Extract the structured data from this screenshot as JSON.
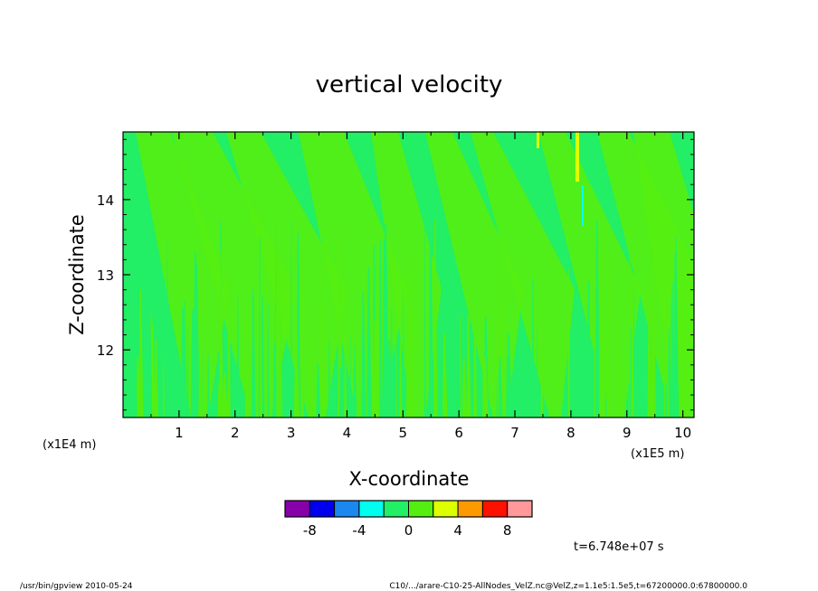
{
  "chart_data": {
    "type": "heatmap",
    "title": "vertical velocity",
    "xlabel": "X-coordinate",
    "ylabel": "Z-coordinate",
    "x_unit_left": "(x1E4 m)",
    "x_unit_right": "(x1E5 m)",
    "xlim": [
      0,
      10.2
    ],
    "ylim": [
      11.1,
      14.9
    ],
    "x_ticks": [
      1,
      2,
      3,
      4,
      5,
      6,
      7,
      8,
      9,
      10
    ],
    "x_tick_labels": [
      "1",
      "2",
      "3",
      "4",
      "5",
      "6",
      "7",
      "8",
      "9",
      "10"
    ],
    "y_ticks": [
      12,
      13,
      14
    ],
    "y_tick_labels": [
      "12",
      "13",
      "14"
    ],
    "colorbar": {
      "levels": [
        -10,
        -8,
        -6,
        -4,
        -2,
        0,
        2,
        4,
        6,
        8,
        10
      ],
      "colors": [
        "#8800aa",
        "#0000ee",
        "#1a88ee",
        "#00ffee",
        "#22ee66",
        "#55ee11",
        "#ddff00",
        "#ff9900",
        "#ff1100",
        "#ff9999"
      ],
      "tick_values": [
        -8,
        -4,
        0,
        4,
        8
      ],
      "tick_labels": [
        "-8",
        "-4",
        "0",
        "4",
        "8"
      ]
    },
    "field_colors": {
      "background": "#22ee66",
      "streaks": "#55ee11",
      "hot": "#ddff00"
    },
    "time_label": "t=6.748e+07 s",
    "footer_left": "/usr/bin/gpview   2010-05-24",
    "footer_right": "C10/.../arare-C10-25-AllNodes_VelZ.nc@VelZ,z=1.1e5:1.5e5,t=67200000.0:67800000.0"
  }
}
